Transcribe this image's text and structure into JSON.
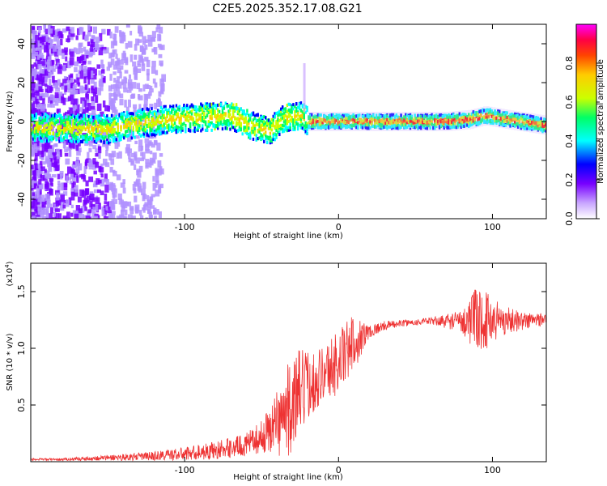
{
  "title": "C2E5.2025.352.17.08.G21",
  "chart_data": [
    {
      "type": "heatmap",
      "xlabel": "Height of straight line (km)",
      "ylabel": "Frequency (Hz)",
      "xlim": [
        -200,
        135
      ],
      "ylim": [
        -50,
        50
      ],
      "xticks": [
        -100,
        0,
        100
      ],
      "yticks": [
        -40,
        -20,
        0,
        20,
        40
      ],
      "colorbar": {
        "label": "Normalized spectral amplitude",
        "range": [
          0.0,
          1.0
        ],
        "ticks": [
          "0.0",
          "0.2",
          "0.4",
          "0.6",
          "0.8"
        ],
        "colors": [
          "#ffffff",
          "#b090ff",
          "#7700ff",
          "#0000ff",
          "#00ffff",
          "#00ff66",
          "#ccff00",
          "#ffcc00",
          "#ff6600",
          "#ff0000",
          "#ff00ff"
        ]
      },
      "band_center": [
        [
          -200,
          -3
        ],
        [
          -150,
          -4
        ],
        [
          -130,
          -1
        ],
        [
          -110,
          1
        ],
        [
          -90,
          2
        ],
        [
          -70,
          3
        ],
        [
          -55,
          -3
        ],
        [
          -45,
          -5
        ],
        [
          -35,
          2
        ],
        [
          -25,
          3
        ],
        [
          -20,
          0
        ],
        [
          0,
          0
        ],
        [
          40,
          0
        ],
        [
          70,
          0
        ],
        [
          85,
          1
        ],
        [
          95,
          3
        ],
        [
          110,
          1
        ],
        [
          135,
          -2
        ]
      ]
    },
    {
      "type": "line",
      "xlabel": "Height of straight line (km)",
      "ylabel": "SNR (10 * v/v)",
      "yscale_label": "(x10",
      "yscale_exp": "4",
      "xlim": [
        -200,
        135
      ],
      "ylim": [
        0.0,
        1.75
      ],
      "xticks": [
        -100,
        0,
        100
      ],
      "yticks": [
        "0.5",
        "1.0",
        "1.5"
      ],
      "x": [
        -200,
        -180,
        -160,
        -140,
        -120,
        -100,
        -80,
        -60,
        -50,
        -40,
        -30,
        -25,
        -20,
        -10,
        0,
        10,
        20,
        30,
        40,
        60,
        80,
        90,
        100,
        110,
        120,
        135
      ],
      "y": [
        0.02,
        0.02,
        0.03,
        0.04,
        0.05,
        0.07,
        0.1,
        0.15,
        0.22,
        0.35,
        0.5,
        0.6,
        0.68,
        0.78,
        0.88,
        1.05,
        1.15,
        1.2,
        1.22,
        1.24,
        1.24,
        1.25,
        1.25,
        1.25,
        1.24,
        1.26
      ],
      "noise": [
        0.01,
        0.01,
        0.02,
        0.03,
        0.04,
        0.06,
        0.08,
        0.1,
        0.14,
        0.3,
        0.45,
        0.4,
        0.3,
        0.25,
        0.3,
        0.25,
        0.06,
        0.04,
        0.03,
        0.03,
        0.1,
        0.3,
        0.22,
        0.12,
        0.08,
        0.06
      ],
      "color": "#ee3333"
    }
  ]
}
